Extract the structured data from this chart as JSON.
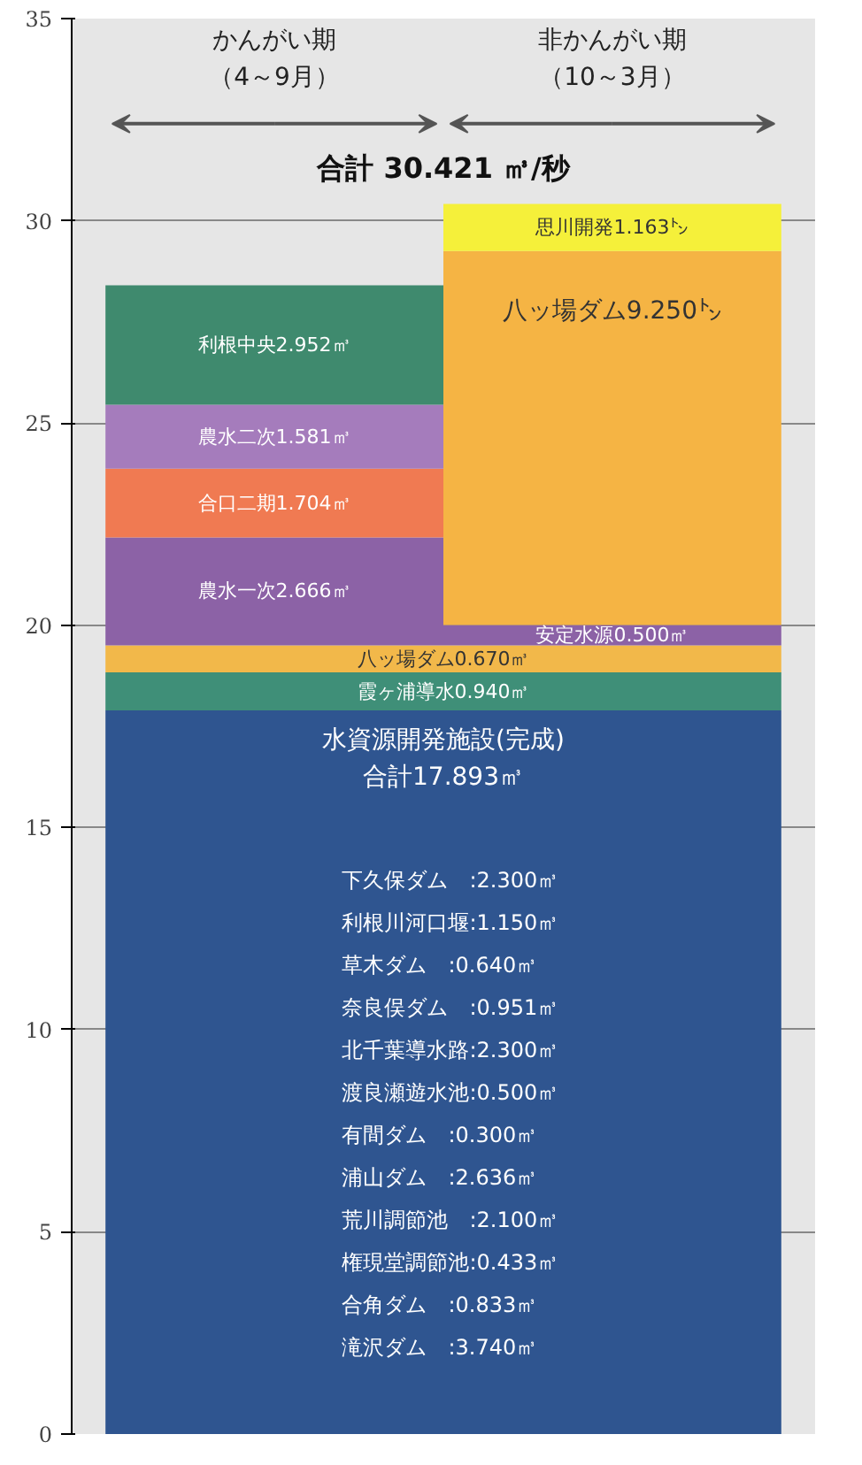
{
  "chart_data": {
    "type": "bar",
    "stacked": true,
    "title": "合計 30.421 ㎥/秒",
    "categories": [
      "かんがい期（4～9月）",
      "非かんがい期（10～3月）"
    ],
    "ylim": [
      0,
      35
    ],
    "yticks": [
      0,
      5,
      10,
      15,
      20,
      25,
      30,
      35
    ],
    "grid": "y",
    "series": [
      {
        "name": "水資源開発施設(完成)",
        "color": "#2f5590",
        "values": [
          17.893,
          17.893
        ],
        "value_labels": [
          "合計17.893㎥",
          null
        ]
      },
      {
        "name": "霞ヶ浦導水",
        "color": "#3f8f78",
        "values": [
          0.94,
          0.94
        ],
        "value_labels": [
          "0.940㎥",
          null
        ]
      },
      {
        "name": "八ッ場ダム",
        "color": "#f2b84a",
        "values": [
          0.67,
          0.67
        ],
        "value_labels": [
          "0.670㎥",
          null
        ]
      },
      {
        "name": "農水一次",
        "color": "#8c62a6",
        "values": [
          2.666,
          null
        ],
        "value_labels": [
          "2.666㎥",
          null
        ]
      },
      {
        "name": "安定水源",
        "color": "#8c62a6",
        "values": [
          null,
          0.5
        ],
        "value_labels": [
          null,
          "0.500㎥"
        ]
      },
      {
        "name": "合口二期",
        "color": "#f07a52",
        "values": [
          1.704,
          null
        ],
        "value_labels": [
          "1.704㎥",
          null
        ]
      },
      {
        "name": "八ッ場ダム",
        "color": "#f5b444",
        "values": [
          null,
          9.25
        ],
        "value_labels": [
          null,
          "9.250㌧"
        ]
      },
      {
        "name": "農水二次",
        "color": "#a57cbc",
        "values": [
          1.581,
          null
        ],
        "value_labels": [
          "1.581㎥",
          null
        ]
      },
      {
        "name": "思川開発",
        "color": "#f5f03a",
        "values": [
          null,
          1.163
        ],
        "value_labels": [
          null,
          "1.163㌧"
        ]
      },
      {
        "name": "利根中央",
        "color": "#3f8a6e",
        "values": [
          2.952,
          null
        ],
        "value_labels": [
          "2.952㎥",
          null
        ]
      }
    ],
    "annotations": [
      "下久保ダム　:2.300㎥",
      "利根川河口堰:1.150㎥",
      "草木ダム　:0.640㎥",
      "奈良俣ダム　:0.951㎥",
      "北千葉導水路:2.300㎥",
      "渡良瀬遊水池:0.500㎥",
      "有間ダム　:0.300㎥",
      "浦山ダム　:2.636㎥",
      "荒川調節池　:2.100㎥",
      "権現堂調節池:0.433㎥",
      "合角ダム　:0.833㎥",
      "滝沢ダム　:3.740㎥"
    ]
  }
}
